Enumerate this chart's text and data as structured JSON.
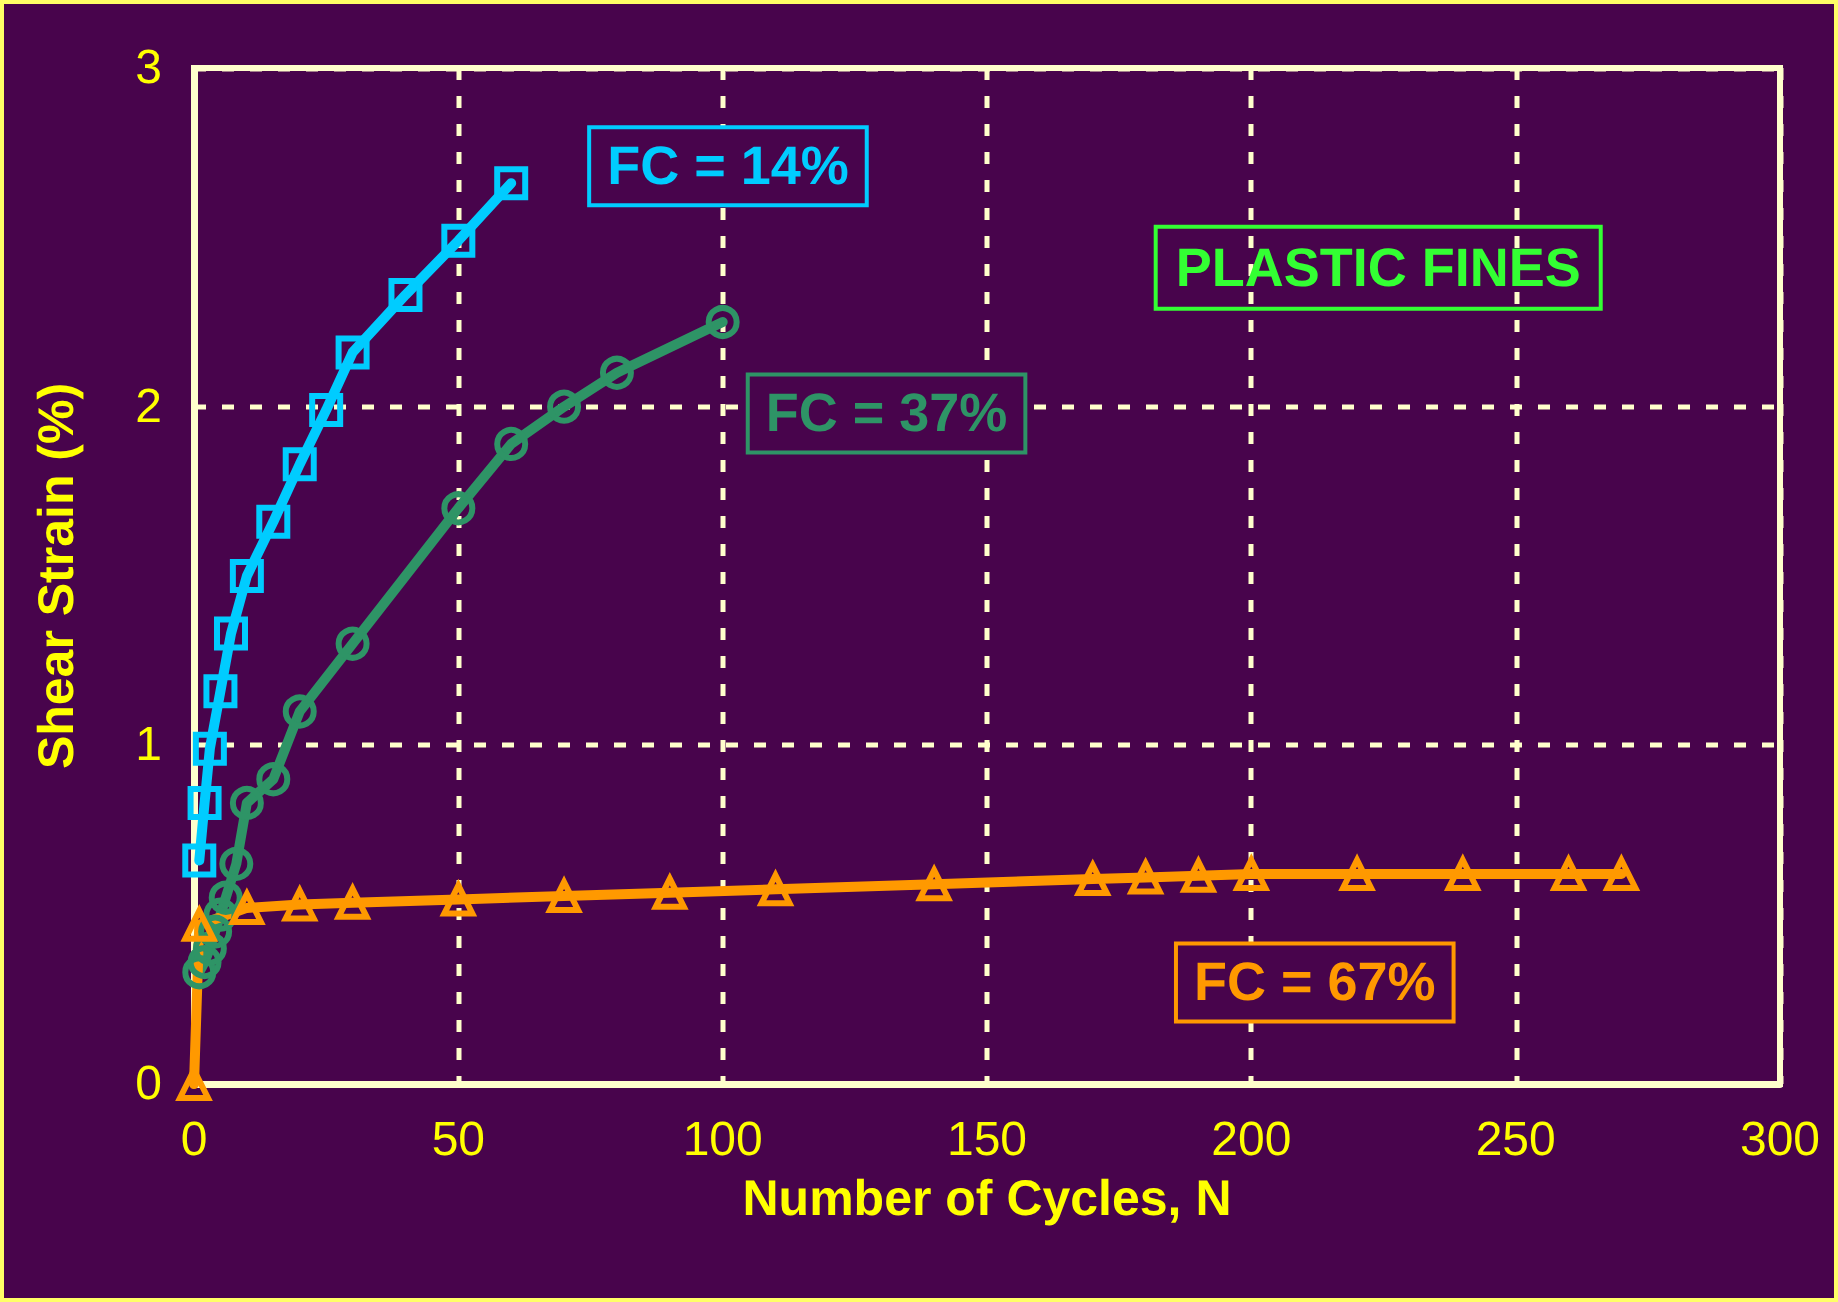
{
  "chart_data": {
    "type": "line",
    "xlabel": "Number of Cycles, N",
    "ylabel": "Shear Strain (%)",
    "xlim": [
      0,
      300
    ],
    "xticks": [
      0,
      50,
      100,
      150,
      200,
      250,
      300
    ],
    "ylim": [
      0,
      3
    ],
    "yticks": [
      0,
      1,
      2,
      3
    ],
    "grid": true,
    "legend": false,
    "line_style": "solid",
    "annotations": [
      "PLASTIC FINES"
    ],
    "series": [
      {
        "name": "FC = 14%",
        "color": "#00ccff",
        "marker": "square",
        "x": [
          1,
          2,
          3,
          5,
          7,
          10,
          15,
          20,
          25,
          30,
          40,
          50,
          60
        ],
        "values": [
          0.66,
          0.83,
          0.99,
          1.16,
          1.33,
          1.5,
          1.66,
          1.83,
          1.99,
          2.16,
          2.33,
          2.49,
          2.66
        ]
      },
      {
        "name": "FC = 37%",
        "color": "#2e9466",
        "marker": "circle",
        "x": [
          1,
          2,
          3,
          4,
          5,
          6,
          8,
          10,
          15,
          20,
          30,
          50,
          60,
          70,
          80,
          100
        ],
        "values": [
          0.33,
          0.36,
          0.4,
          0.45,
          0.5,
          0.55,
          0.65,
          0.83,
          0.9,
          1.1,
          1.3,
          1.7,
          1.89,
          2.0,
          2.1,
          2.25
        ]
      },
      {
        "name": "FC = 67%",
        "color": "#ff9900",
        "marker": "triangle",
        "x": [
          0,
          1,
          10,
          20,
          30,
          50,
          70,
          90,
          110,
          140,
          170,
          180,
          190,
          200,
          220,
          240,
          260,
          270
        ],
        "values": [
          0,
          0.47,
          0.52,
          0.53,
          0.535,
          0.545,
          0.555,
          0.565,
          0.575,
          0.59,
          0.605,
          0.61,
          0.615,
          0.62,
          0.62,
          0.62,
          0.62,
          0.62
        ]
      }
    ]
  }
}
